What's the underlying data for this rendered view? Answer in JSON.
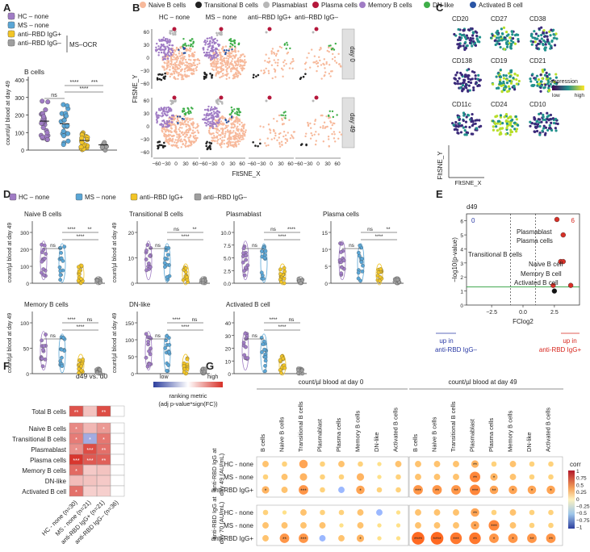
{
  "figure": {
    "panels": {
      "A": "A",
      "B": "B",
      "C": "C",
      "D": "D",
      "E": "E",
      "F": "F",
      "G": "G"
    }
  },
  "colors": {
    "hc": "#a07cc5",
    "ms": "#5aa6d6",
    "pos": "#f2c526",
    "neg": "#9e9e9e",
    "naive": "#f7b99b",
    "transitional": "#222222",
    "plasmablast": "#b7b7b7",
    "plasma": "#b5173b",
    "memory": "#a07cc5",
    "dnlike": "#3fae49",
    "activated": "#2a55a5",
    "heat_high": "#d73027",
    "heat_low": "#3b4cc0"
  },
  "panelA": {
    "legend": [
      "HC – none",
      "MS – none",
      "anti–RBD IgG+",
      "anti–RBD IgG–"
    ],
    "legend_group": "MS–OCR",
    "title": "B cells",
    "ylabel": "count/µl blood at day 49",
    "yticks": [
      "0",
      "100",
      "200",
      "300",
      "400"
    ],
    "sig": [
      "ns",
      "****",
      "***",
      "****"
    ]
  },
  "panelB": {
    "legend": [
      "Naive B cells",
      "Transitional B cells",
      "Plasmablast",
      "Plasma cells",
      "Memory B cells",
      "DN-like",
      "Activated B cell"
    ],
    "columns": [
      "HC – none",
      "MS – none",
      "anti–RBD IgG+",
      "anti–RBD IgG–"
    ],
    "rows": [
      "day 0",
      "day 49"
    ],
    "xticks": [
      "−60",
      "−30",
      "0",
      "30",
      "60"
    ],
    "yticks": [
      "60",
      "30",
      "0",
      "−30",
      "−60"
    ],
    "xlabel": "FltSNE_X",
    "ylabel": "FltSNE_Y"
  },
  "panelC": {
    "markers": [
      "CD20",
      "CD27",
      "CD38",
      "CD138",
      "CD19",
      "CD21",
      "CD11c",
      "CD24",
      "CD10"
    ],
    "legend_title": "expression",
    "legend_low": "low",
    "legend_high": "high",
    "xlabel": "FltSNE_X",
    "ylabel": "FltSNE_Y"
  },
  "panelD": {
    "legend": [
      "HC – none",
      "MS – none",
      "anti–RBD IgG+",
      "anti–RBD IgG–"
    ],
    "ylabel": "count/µl blood at day 49",
    "plots": [
      {
        "title": "Naive B cells",
        "yticks": [
          "0",
          "100",
          "200",
          "300"
        ],
        "sig": [
          "ns",
          "****",
          "**",
          "****"
        ]
      },
      {
        "title": "Transitional B cells",
        "yticks": [
          "0",
          "10",
          "20"
        ],
        "sig": [
          "ns",
          "ns",
          "**",
          "****"
        ]
      },
      {
        "title": "Plasmablast",
        "yticks": [
          "0.0",
          "2.5",
          "5.0",
          "7.5",
          "10.0"
        ],
        "sig": [
          "ns",
          "ns",
          "****",
          "****"
        ]
      },
      {
        "title": "Plasma cells",
        "yticks": [
          "0",
          "5",
          "10",
          "15"
        ],
        "sig": [
          "ns",
          "ns",
          "**",
          "****"
        ]
      },
      {
        "title": "Memory B cells",
        "yticks": [
          "0",
          "50",
          "100"
        ],
        "sig": [
          "ns",
          "****",
          "ns",
          "****"
        ]
      },
      {
        "title": "DN-like",
        "yticks": [
          "0",
          "50",
          "100",
          "150"
        ],
        "sig": [
          "ns",
          "****",
          "ns",
          "****"
        ]
      },
      {
        "title": "Activated B cell",
        "yticks": [
          "0",
          "10",
          "20",
          "30",
          "40"
        ],
        "sig": [
          "ns",
          "****",
          "ns",
          "****"
        ]
      }
    ]
  },
  "panelE": {
    "title": "d49",
    "count_left": "0",
    "count_right": "6",
    "xlabel": "FClog2",
    "ylabel": "−log10(p-value)",
    "xticks": [
      "−2.5",
      "0.0",
      "2.5"
    ],
    "yticks": [
      "0",
      "1",
      "2",
      "3",
      "4",
      "5",
      "6"
    ],
    "labels": [
      "Plasmablast",
      "Plasma cells",
      "Transitional B cells",
      "Naive B cell",
      "Memory B cell",
      "Activated B cell"
    ],
    "up_left": "up in",
    "up_left2": "anti-RBD IgG–",
    "up_right": "up in",
    "up_right2": "anti-RBD IgG+",
    "points": [
      {
        "name": "Plasmablast",
        "fc": 2.7,
        "p": 6.1
      },
      {
        "name": "Plasma cells",
        "fc": 3.2,
        "p": 5.0
      },
      {
        "name": "Transitional B cells",
        "fc": 3.0,
        "p": 3.1
      },
      {
        "name": "Naive B cell",
        "fc": 3.2,
        "p": 3.1
      },
      {
        "name": "Memory B cell",
        "fc": 3.8,
        "p": 1.4
      },
      {
        "name": "Activated B cell",
        "fc": 2.4,
        "p": 1.4
      },
      {
        "name": "DN-like",
        "fc": 2.5,
        "p": 1.0
      }
    ]
  },
  "panelF": {
    "title": "d49 vs. d0",
    "rows": [
      "Total B cells",
      "Naive B cells",
      "Transitional B cells",
      "Plasmablast",
      "Plasma cells",
      "Memory B cells",
      "DN-like",
      "Activated B cell"
    ],
    "cols": [
      "HC - none (n=30)",
      "MS - none (n=21)",
      "anti-RBD IgG+ (n=21)",
      "anti-RBD IgG– (n=36)"
    ],
    "legend_low": "low",
    "legend_high": "high",
    "legend_title": "ranking metric",
    "legend_sub": "(adj p-value*sign(FC))",
    "cells": [
      [
        2.5,
        0.6,
        2.6,
        0.0
      ],
      [
        1.6,
        0.8,
        1.3,
        0.0
      ],
      [
        1.8,
        -1.2,
        1.9,
        0.0
      ],
      [
        1.5,
        2.6,
        2.0,
        0.0
      ],
      [
        3.0,
        2.4,
        2.3,
        0.0
      ],
      [
        2.1,
        0.5,
        0.6,
        0.0
      ],
      [
        0.7,
        0.6,
        0.5,
        0.0
      ],
      [
        2.0,
        0.4,
        0.4,
        0.0
      ]
    ],
    "stars": [
      [
        "**",
        "",
        "**",
        ""
      ],
      [
        "*",
        "",
        "*",
        ""
      ],
      [
        "*",
        "*",
        "*",
        ""
      ],
      [
        "*",
        "***",
        "**",
        ""
      ],
      [
        "***",
        "***",
        "**",
        ""
      ],
      [
        "*",
        "",
        "",
        ""
      ],
      [
        "",
        "",
        "",
        ""
      ],
      [
        "*",
        "",
        "",
        ""
      ]
    ]
  },
  "panelG": {
    "group0": "count/µl blood at day 0",
    "group49": "count/µl blood at day 49",
    "cols": [
      "B cells",
      "Naive B cells",
      "Transitional B cells",
      "Plasmablast",
      "Plasma cells",
      "Memory B cells",
      "DN-like",
      "Activated B cells"
    ],
    "rowgroups": [
      {
        "label1": "anti-RBD IgG at",
        "label2": "day 49 (AU/mL)",
        "rows": [
          "HC - none",
          "MS - none",
          "anti-RBD IgG+"
        ]
      },
      {
        "label1": "anti-RBD IgG at",
        "label2": "day 70 (AU/mL)",
        "rows": [
          "HC - none",
          "MS - none",
          "anti-RBD IgG+"
        ]
      }
    ],
    "legend_title": "corr",
    "legend_ticks": [
      "1",
      "0.75",
      "0.5",
      "0.25",
      "0",
      "−0.25",
      "−0.5",
      "−0.75",
      "−1"
    ],
    "corr0": [
      [
        0.3,
        0.2,
        0.5,
        0.2,
        0.3,
        0.2,
        0.1,
        0.3
      ],
      [
        0.2,
        0.3,
        0.4,
        0.2,
        0.2,
        0.4,
        0.1,
        0.2
      ],
      [
        0.4,
        0.3,
        0.6,
        0.2,
        -0.3,
        0.5,
        0.2,
        0.2
      ],
      [
        0.2,
        0.1,
        0.3,
        0.2,
        0.2,
        0.3,
        -0.3,
        0.1
      ],
      [
        0.3,
        0.3,
        0.3,
        0.3,
        0.1,
        0.3,
        0.1,
        0.1
      ],
      [
        0.3,
        0.6,
        0.6,
        -0.3,
        0.3,
        0.4,
        0.1,
        0.1
      ]
    ],
    "stars0": [
      [
        "",
        "",
        "",
        "",
        "",
        "",
        "",
        ""
      ],
      [
        "",
        "",
        "",
        "",
        "",
        "",
        "",
        ""
      ],
      [
        "*",
        "",
        "***",
        "",
        "",
        "*",
        "",
        ""
      ],
      [
        "",
        "",
        "",
        "",
        "",
        "",
        "",
        ""
      ],
      [
        "",
        "",
        "",
        "",
        "",
        "",
        "",
        ""
      ],
      [
        "",
        "**",
        "***",
        "",
        "",
        "*",
        "",
        ""
      ]
    ],
    "corr49": [
      [
        0.3,
        0.3,
        0.3,
        0.4,
        0.2,
        0.3,
        0.2,
        0.2
      ],
      [
        0.3,
        0.3,
        0.3,
        0.7,
        0.4,
        0.3,
        0.2,
        0.2
      ],
      [
        0.6,
        0.6,
        0.6,
        0.7,
        0.5,
        0.5,
        0.5,
        0.5
      ],
      [
        0.3,
        0.3,
        0.3,
        0.5,
        0.2,
        0.3,
        0.2,
        0.2
      ],
      [
        0.3,
        0.3,
        0.3,
        0.5,
        0.7,
        0.3,
        0.2,
        0.2
      ],
      [
        0.9,
        0.9,
        0.8,
        0.8,
        0.6,
        0.6,
        0.6,
        0.6
      ]
    ],
    "stars49": [
      [
        "",
        "",
        "",
        "**",
        "",
        "",
        "",
        ""
      ],
      [
        "",
        "",
        "",
        "**",
        "*",
        "",
        "",
        ""
      ],
      [
        "***",
        "**",
        "**",
        "***",
        "**",
        "*",
        "*",
        "*"
      ],
      [
        "",
        "",
        "",
        "**",
        "",
        "",
        "",
        ""
      ],
      [
        "",
        "",
        "",
        "*",
        "***",
        "",
        "",
        ""
      ],
      [
        "****",
        "****",
        "***",
        "**",
        "*",
        "*",
        "**",
        "**"
      ]
    ]
  }
}
